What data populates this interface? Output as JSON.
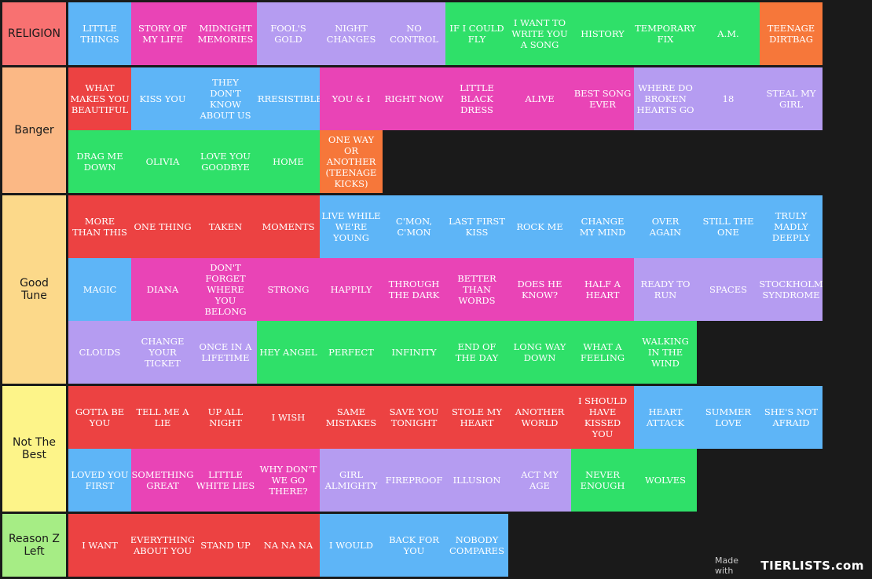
{
  "colors": {
    "background": "#1a1a1a",
    "blue": "#5eb5f7",
    "pink": "#e944b6",
    "lavender": "#b59cf1",
    "green": "#2fe069",
    "orange": "#f6773a",
    "red": "#ec4242"
  },
  "watermark": {
    "made_with": "Made with",
    "brand": "TIERLISTS.com"
  },
  "tiers": [
    {
      "label": "RELIGION",
      "color": "#f87171",
      "rows": 1,
      "items": [
        {
          "label": "LITTLE THINGS",
          "color": "#5eb5f7"
        },
        {
          "label": "STORY OF MY LIFE",
          "color": "#e944b6"
        },
        {
          "label": "MIDNIGHT MEMORIES",
          "color": "#e944b6"
        },
        {
          "label": "FOOL'S GOLD",
          "color": "#b59cf1"
        },
        {
          "label": "NIGHT CHANGES",
          "color": "#b59cf1"
        },
        {
          "label": "NO CONTROL",
          "color": "#b59cf1"
        },
        {
          "label": "IF I COULD FLY",
          "color": "#2fe069"
        },
        {
          "label": "I WANT TO WRITE YOU A SONG",
          "color": "#2fe069"
        },
        {
          "label": "HISTORY",
          "color": "#2fe069"
        },
        {
          "label": "TEMPORARY FIX",
          "color": "#2fe069"
        },
        {
          "label": "A.M.",
          "color": "#2fe069"
        },
        {
          "label": "TEENAGE DIRTBAG",
          "color": "#f6773a"
        }
      ]
    },
    {
      "label": "Banger",
      "color": "#fbb885",
      "rows": 2,
      "items": [
        {
          "label": "WHAT MAKES YOU BEAUTIFUL",
          "color": "#ec4242"
        },
        {
          "label": "KISS YOU",
          "color": "#5eb5f7"
        },
        {
          "label": "THEY DON'T KNOW ABOUT US",
          "color": "#5eb5f7"
        },
        {
          "label": "IRRESISTIBLE",
          "color": "#5eb5f7"
        },
        {
          "label": "YOU & I",
          "color": "#e944b6"
        },
        {
          "label": "RIGHT NOW",
          "color": "#e944b6"
        },
        {
          "label": "LITTLE BLACK DRESS",
          "color": "#e944b6"
        },
        {
          "label": "ALIVE",
          "color": "#e944b6"
        },
        {
          "label": "BEST SONG EVER",
          "color": "#e944b6"
        },
        {
          "label": "WHERE DO BROKEN HEARTS GO",
          "color": "#b59cf1"
        },
        {
          "label": "18",
          "color": "#b59cf1"
        },
        {
          "label": "STEAL MY GIRL",
          "color": "#b59cf1"
        },
        {
          "label": "DRAG ME DOWN",
          "color": "#2fe069"
        },
        {
          "label": "OLIVIA",
          "color": "#2fe069"
        },
        {
          "label": "LOVE YOU GOODBYE",
          "color": "#2fe069"
        },
        {
          "label": "HOME",
          "color": "#2fe069"
        },
        {
          "label": "ONE WAY OR ANOTHER (TEENAGE KICKS)",
          "color": "#f6773a"
        }
      ]
    },
    {
      "label": "Good\nTune",
      "color": "#fcd98a",
      "rows": 3,
      "items": [
        {
          "label": "MORE THAN THIS",
          "color": "#ec4242"
        },
        {
          "label": "ONE THING",
          "color": "#ec4242"
        },
        {
          "label": "TAKEN",
          "color": "#ec4242"
        },
        {
          "label": "MOMENTS",
          "color": "#ec4242"
        },
        {
          "label": "LIVE WHILE WE'RE YOUNG",
          "color": "#5eb5f7"
        },
        {
          "label": "C'MON, C'MON",
          "color": "#5eb5f7"
        },
        {
          "label": "LAST FIRST KISS",
          "color": "#5eb5f7"
        },
        {
          "label": "ROCK ME",
          "color": "#5eb5f7"
        },
        {
          "label": "CHANGE MY MIND",
          "color": "#5eb5f7"
        },
        {
          "label": "OVER AGAIN",
          "color": "#5eb5f7"
        },
        {
          "label": "STILL THE ONE",
          "color": "#5eb5f7"
        },
        {
          "label": "TRULY MADLY DEEPLY",
          "color": "#5eb5f7"
        },
        {
          "label": "MAGIC",
          "color": "#5eb5f7"
        },
        {
          "label": "DIANA",
          "color": "#e944b6"
        },
        {
          "label": "DON'T FORGET WHERE YOU BELONG",
          "color": "#e944b6"
        },
        {
          "label": "STRONG",
          "color": "#e944b6"
        },
        {
          "label": "HAPPILY",
          "color": "#e944b6"
        },
        {
          "label": "THROUGH THE DARK",
          "color": "#e944b6"
        },
        {
          "label": "BETTER THAN WORDS",
          "color": "#e944b6"
        },
        {
          "label": "DOES HE KNOW?",
          "color": "#e944b6"
        },
        {
          "label": "HALF A HEART",
          "color": "#e944b6"
        },
        {
          "label": "READY TO RUN",
          "color": "#b59cf1"
        },
        {
          "label": "SPACES",
          "color": "#b59cf1"
        },
        {
          "label": "STOCKHOLM SYNDROME",
          "color": "#b59cf1"
        },
        {
          "label": "CLOUDS",
          "color": "#b59cf1"
        },
        {
          "label": "CHANGE YOUR TICKET",
          "color": "#b59cf1"
        },
        {
          "label": "ONCE IN A LIFETIME",
          "color": "#b59cf1"
        },
        {
          "label": "HEY ANGEL",
          "color": "#2fe069"
        },
        {
          "label": "PERFECT",
          "color": "#2fe069"
        },
        {
          "label": "INFINITY",
          "color": "#2fe069"
        },
        {
          "label": "END OF THE DAY",
          "color": "#2fe069"
        },
        {
          "label": "LONG WAY DOWN",
          "color": "#2fe069"
        },
        {
          "label": "WHAT A FEELING",
          "color": "#2fe069"
        },
        {
          "label": "WALKING IN THE WIND",
          "color": "#2fe069"
        }
      ]
    },
    {
      "label": "Not The\nBest",
      "color": "#fdf489",
      "rows": 2,
      "items": [
        {
          "label": "GOTTA BE YOU",
          "color": "#ec4242"
        },
        {
          "label": "TELL ME A LIE",
          "color": "#ec4242"
        },
        {
          "label": "UP ALL NIGHT",
          "color": "#ec4242"
        },
        {
          "label": "I WISH",
          "color": "#ec4242"
        },
        {
          "label": "SAME MISTAKES",
          "color": "#ec4242"
        },
        {
          "label": "SAVE YOU TONIGHT",
          "color": "#ec4242"
        },
        {
          "label": "STOLE MY HEART",
          "color": "#ec4242"
        },
        {
          "label": "ANOTHER WORLD",
          "color": "#ec4242"
        },
        {
          "label": "I SHOULD HAVE KISSED YOU",
          "color": "#ec4242"
        },
        {
          "label": "HEART ATTACK",
          "color": "#5eb5f7"
        },
        {
          "label": "SUMMER LOVE",
          "color": "#5eb5f7"
        },
        {
          "label": "SHE'S NOT AFRAID",
          "color": "#5eb5f7"
        },
        {
          "label": "LOVED YOU FIRST",
          "color": "#5eb5f7"
        },
        {
          "label": "SOMETHING GREAT",
          "color": "#e944b6"
        },
        {
          "label": "LITTLE WHITE LIES",
          "color": "#e944b6"
        },
        {
          "label": "WHY DON'T WE GO THERE?",
          "color": "#e944b6"
        },
        {
          "label": "GIRL ALMIGHTY",
          "color": "#b59cf1"
        },
        {
          "label": "FIREPROOF",
          "color": "#b59cf1"
        },
        {
          "label": "ILLUSION",
          "color": "#b59cf1"
        },
        {
          "label": "ACT MY AGE",
          "color": "#b59cf1"
        },
        {
          "label": "NEVER ENOUGH",
          "color": "#2fe069"
        },
        {
          "label": "WOLVES",
          "color": "#2fe069"
        }
      ]
    },
    {
      "label": "Reason Z\nLeft",
      "color": "#a6ed85",
      "rows": 1,
      "items": [
        {
          "label": "I WANT",
          "color": "#ec4242"
        },
        {
          "label": "EVERYTHING ABOUT YOU",
          "color": "#ec4242"
        },
        {
          "label": "STAND UP",
          "color": "#ec4242"
        },
        {
          "label": "NA NA NA",
          "color": "#ec4242"
        },
        {
          "label": "I WOULD",
          "color": "#5eb5f7"
        },
        {
          "label": "BACK FOR YOU",
          "color": "#5eb5f7"
        },
        {
          "label": "NOBODY COMPARES",
          "color": "#5eb5f7"
        }
      ]
    }
  ]
}
